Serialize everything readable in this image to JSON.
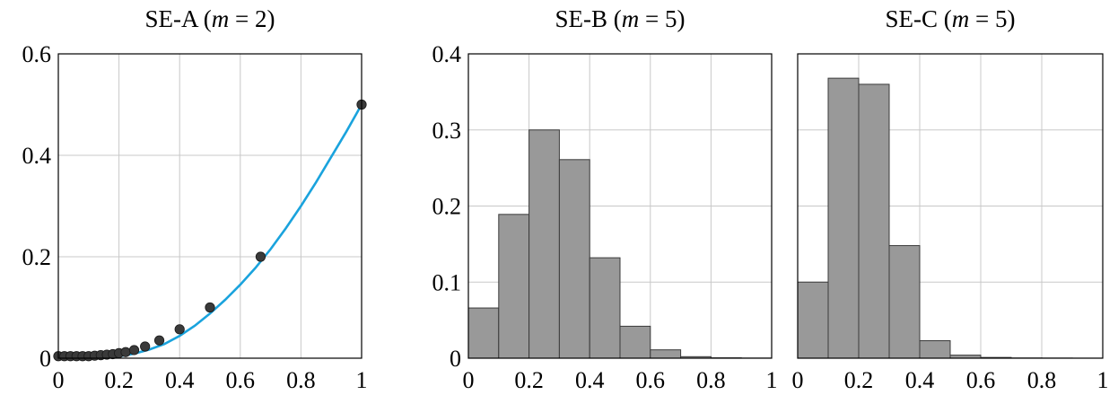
{
  "chart_data": [
    {
      "type": "scatter",
      "title_prefix": "SE-A (",
      "title_var": "m",
      "title_suffix": " = 2)",
      "xlim": [
        0,
        1
      ],
      "ylim": [
        0,
        0.6
      ],
      "xticks": [
        "0",
        "0.2",
        "0.4",
        "0.6",
        "0.8",
        "1"
      ],
      "yticks": [
        "0",
        "0.2",
        "0.4",
        "0.6"
      ],
      "grid": true,
      "curve_color": "#1aa3dd",
      "point_color": "#3a3a3a",
      "curve": {
        "x": [
          0,
          0.05,
          0.1,
          0.15,
          0.2,
          0.25,
          0.3,
          0.35,
          0.4,
          0.45,
          0.5,
          0.55,
          0.6,
          0.65,
          0.7,
          0.75,
          0.8,
          0.85,
          0.9,
          0.95,
          1.0
        ],
        "y": [
          0,
          0,
          0,
          0.0009,
          0.0035,
          0.009,
          0.017,
          0.028,
          0.044,
          0.064,
          0.088,
          0.115,
          0.145,
          0.178,
          0.215,
          0.256,
          0.3,
          0.347,
          0.397,
          0.447,
          0.5
        ]
      },
      "points": {
        "x": [
          0.0,
          0.02,
          0.04,
          0.06,
          0.08,
          0.1,
          0.12,
          0.14,
          0.16,
          0.18,
          0.2,
          0.222,
          0.25,
          0.286,
          0.333,
          0.4,
          0.5,
          0.667,
          1.0
        ],
        "y": [
          0.004,
          0.004,
          0.004,
          0.004,
          0.004,
          0.004,
          0.005,
          0.006,
          0.007,
          0.008,
          0.01,
          0.012,
          0.016,
          0.023,
          0.035,
          0.057,
          0.1,
          0.2,
          0.5
        ]
      }
    },
    {
      "type": "bar",
      "title_prefix": "SE-B (",
      "title_var": "m",
      "title_suffix": " = 5)",
      "xlim": [
        0,
        1
      ],
      "ylim": [
        0,
        0.4
      ],
      "xticks": [
        "0",
        "0.2",
        "0.4",
        "0.6",
        "0.8",
        "1"
      ],
      "yticks": [
        "0",
        "0.1",
        "0.2",
        "0.3",
        "0.4"
      ],
      "grid": true,
      "bar_color": "#999999",
      "bin_width": 0.1,
      "bins": [
        0.0,
        0.1,
        0.2,
        0.3,
        0.4,
        0.5,
        0.6,
        0.7,
        0.8,
        0.9
      ],
      "values": [
        0.066,
        0.189,
        0.3,
        0.261,
        0.132,
        0.042,
        0.011,
        0.002,
        0.0005,
        0.0002
      ]
    },
    {
      "type": "bar",
      "title_prefix": "SE-C (",
      "title_var": "m",
      "title_suffix": " = 5)",
      "xlim": [
        0,
        1
      ],
      "ylim": [
        0,
        0.4
      ],
      "xticks": [
        "0",
        "0.2",
        "0.4",
        "0.6",
        "0.8",
        "1"
      ],
      "yticks": [],
      "grid": true,
      "bar_color": "#999999",
      "bin_width": 0.1,
      "bins": [
        0.0,
        0.1,
        0.2,
        0.3,
        0.4,
        0.5,
        0.6,
        0.7,
        0.8,
        0.9
      ],
      "values": [
        0.1,
        0.368,
        0.36,
        0.148,
        0.023,
        0.004,
        0.001,
        0.0003,
        0.0002,
        0.0001
      ]
    }
  ]
}
